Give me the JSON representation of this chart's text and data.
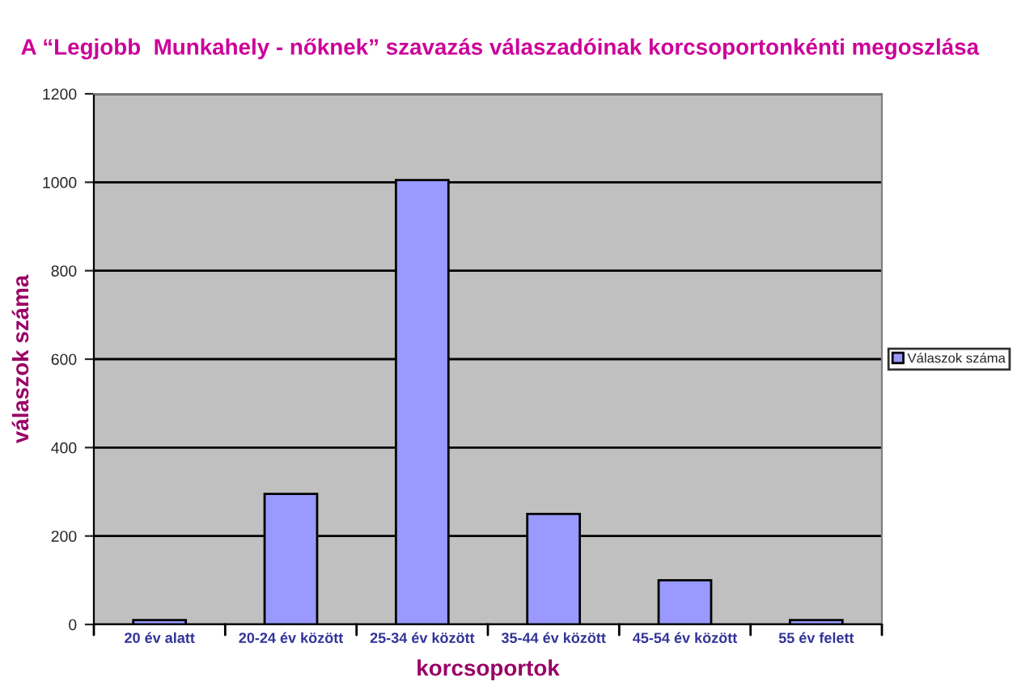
{
  "chart_data": {
    "type": "bar",
    "title": "A “Legjobb  Munkahely - nőknek” szavazás válaszadóinak korcsoportonkénti megoszlása",
    "xlabel": "korcsoportok",
    "ylabel": "válaszok száma",
    "categories": [
      "20 év alatt",
      "20-24 év között",
      "25-34 év között",
      "35-44 év között",
      "45-54 év között",
      "55 év felett"
    ],
    "series": [
      {
        "name": "Válaszok száma",
        "color": "#9999ff",
        "values": [
          10,
          295,
          1005,
          250,
          100,
          10
        ]
      }
    ],
    "ylim": [
      0,
      1200
    ],
    "yticks": [
      0,
      200,
      400,
      600,
      800,
      1000,
      1200
    ],
    "grid": "y",
    "legend": "right"
  }
}
